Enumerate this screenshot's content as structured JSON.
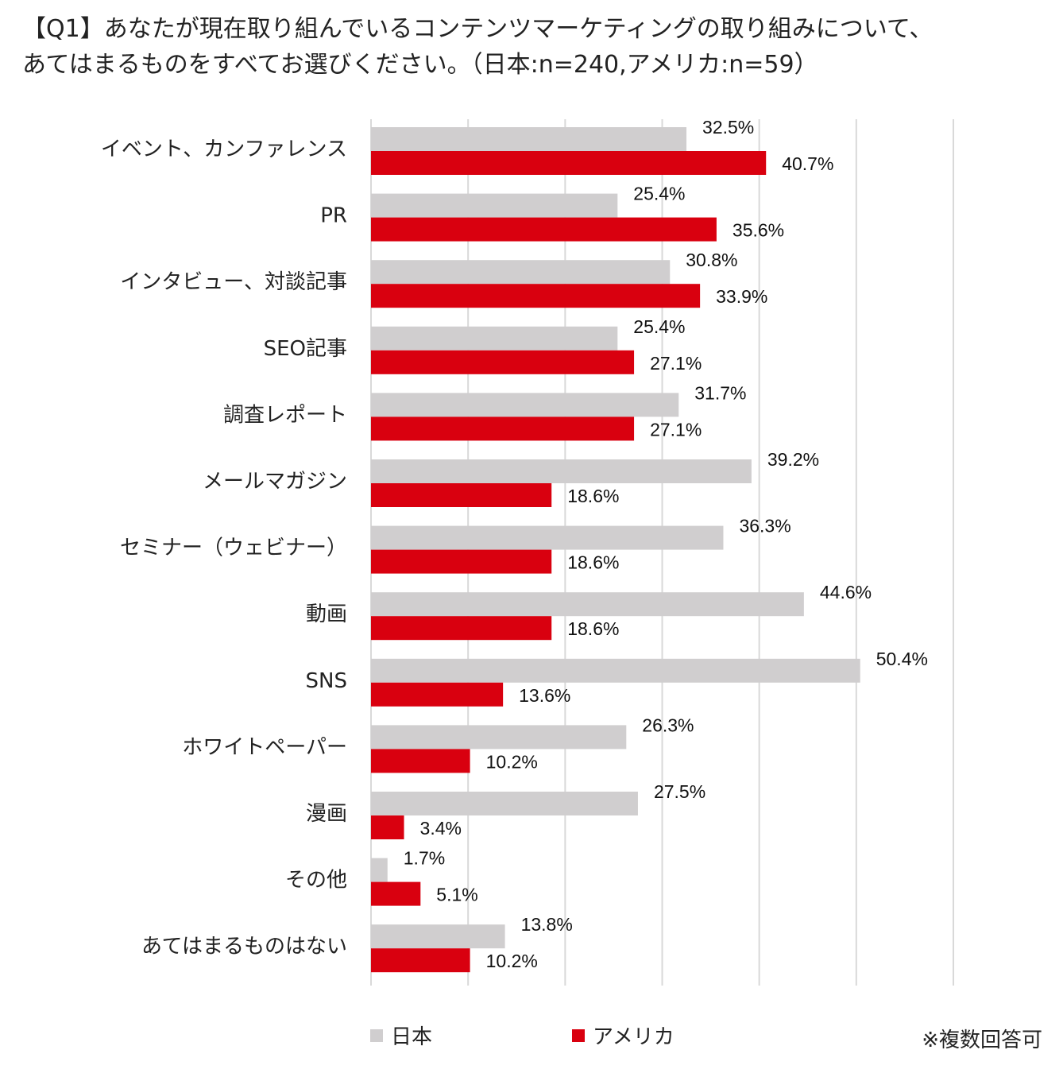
{
  "title": {
    "line1": "【Q1】あなたが現在取り組んでいるコンテンツマーケティングの取り組みについて、",
    "line2": "あてはまるものをすべてお選びください。（日本:n=240,アメリカ:n=59）"
  },
  "note": "※複数回答可",
  "colors": {
    "japan": "#d0cecf",
    "usa": "#d9000f",
    "grid": "#d9d9d9"
  },
  "chart_data": {
    "type": "bar",
    "orientation": "horizontal",
    "xlim": [
      0,
      60
    ],
    "grid": true,
    "legend_position": "bottom",
    "categories": [
      "イベント、カンファレンス",
      "PR",
      "インタビュー、対談記事",
      "SEO記事",
      "調査レポート",
      "メールマガジン",
      "セミナー（ウェビナー）",
      "動画",
      "SNS",
      "ホワイトペーパー",
      "漫画",
      "その他",
      "あてはまるものはない"
    ],
    "series": [
      {
        "name": "日本",
        "values": [
          32.5,
          25.4,
          30.8,
          25.4,
          31.7,
          39.2,
          36.3,
          44.6,
          50.4,
          26.3,
          27.5,
          1.7,
          13.8
        ]
      },
      {
        "name": "アメリカ",
        "values": [
          40.7,
          35.6,
          33.9,
          27.1,
          27.1,
          18.6,
          18.6,
          18.6,
          13.6,
          10.2,
          3.4,
          5.1,
          10.2
        ]
      }
    ],
    "data_labels": [
      [
        "32.5%",
        "25.4%",
        "30.8%",
        "25.4%",
        "31.7%",
        "39.2%",
        "36.3%",
        "44.6%",
        "50.4%",
        "26.3%",
        "27.5%",
        "1.7%",
        "13.8%"
      ],
      [
        "40.7%",
        "35.6%",
        "33.9%",
        "27.1%",
        "27.1%",
        "18.6%",
        "18.6%",
        "18.6%",
        "13.6%",
        "10.2%",
        "3.4%",
        "5.1%",
        "10.2%"
      ]
    ]
  }
}
